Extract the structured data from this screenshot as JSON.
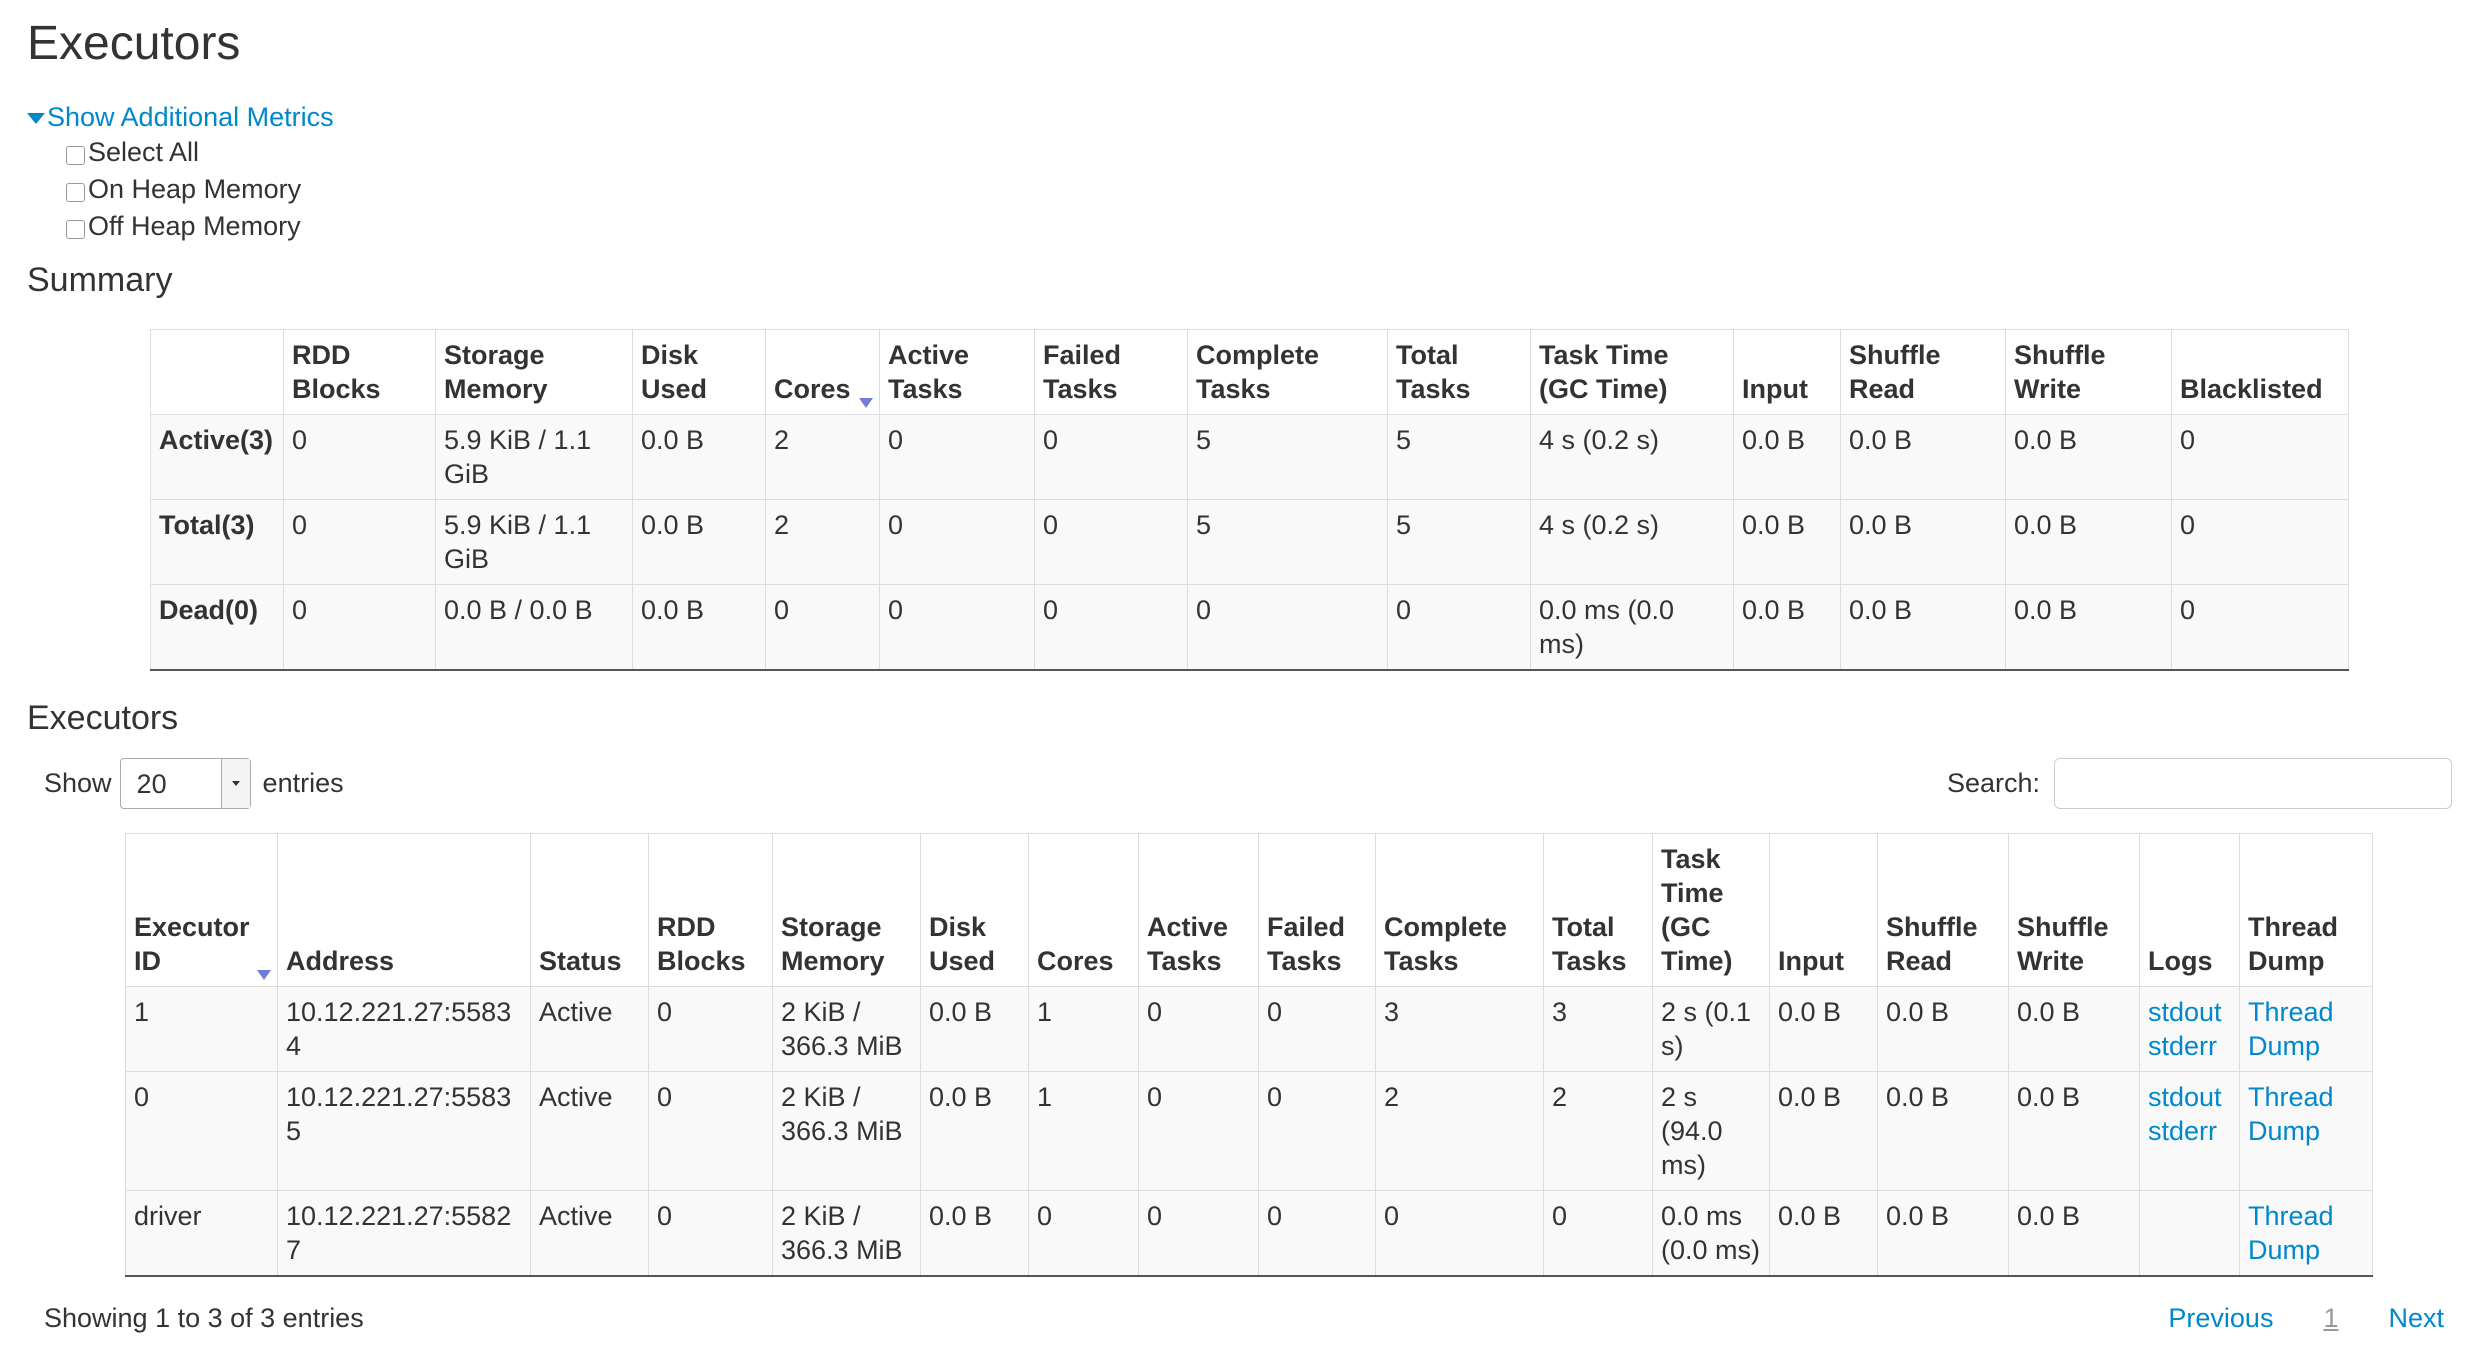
{
  "page_title": "Executors",
  "metrics_toggle": "Show Additional Metrics",
  "metrics_options": [
    "Select All",
    "On Heap Memory",
    "Off Heap Memory"
  ],
  "summary": {
    "heading": "Summary",
    "columns": [
      "",
      "RDD Blocks",
      "Storage Memory",
      "Disk Used",
      "Cores",
      "Active Tasks",
      "Failed Tasks",
      "Complete Tasks",
      "Total Tasks",
      "Task Time (GC Time)",
      "Input",
      "Shuffle Read",
      "Shuffle Write",
      "Blacklisted"
    ],
    "sorted_column": "Cores",
    "rows": [
      [
        "Active(3)",
        "0",
        "5.9 KiB / 1.1 GiB",
        "0.0 B",
        "2",
        "0",
        "0",
        "5",
        "5",
        "4 s (0.2 s)",
        "0.0 B",
        "0.0 B",
        "0.0 B",
        "0"
      ],
      [
        "Total(3)",
        "0",
        "5.9 KiB / 1.1 GiB",
        "0.0 B",
        "2",
        "0",
        "0",
        "5",
        "5",
        "4 s (0.2 s)",
        "0.0 B",
        "0.0 B",
        "0.0 B",
        "0"
      ],
      [
        "Dead(0)",
        "0",
        "0.0 B / 0.0 B",
        "0.0 B",
        "0",
        "0",
        "0",
        "0",
        "0",
        "0.0 ms (0.0 ms)",
        "0.0 B",
        "0.0 B",
        "0.0 B",
        "0"
      ]
    ]
  },
  "executors": {
    "heading": "Executors",
    "show_label": "Show",
    "page_size": "20",
    "entries_label": "entries",
    "search_label": "Search:",
    "search_value": "",
    "columns": [
      "Executor ID",
      "Address",
      "Status",
      "RDD Blocks",
      "Storage Memory",
      "Disk Used",
      "Cores",
      "Active Tasks",
      "Failed Tasks",
      "Complete Tasks",
      "Total Tasks",
      "Task Time (GC Time)",
      "Input",
      "Shuffle Read",
      "Shuffle Write",
      "Logs",
      "Thread Dump"
    ],
    "sorted_column": "Executor ID",
    "rows": [
      {
        "cells": [
          "1",
          "10.12.221.27:55834",
          "Active",
          "0",
          "2 KiB / 366.3 MiB",
          "0.0 B",
          "1",
          "0",
          "0",
          "3",
          "3",
          "2 s (0.1 s)",
          "0.0 B",
          "0.0 B",
          "0.0 B"
        ],
        "logs": [
          "stdout",
          "stderr"
        ],
        "thread_dump": "Thread Dump"
      },
      {
        "cells": [
          "0",
          "10.12.221.27:55835",
          "Active",
          "0",
          "2 KiB / 366.3 MiB",
          "0.0 B",
          "1",
          "0",
          "0",
          "2",
          "2",
          "2 s (94.0 ms)",
          "0.0 B",
          "0.0 B",
          "0.0 B"
        ],
        "logs": [
          "stdout",
          "stderr"
        ],
        "thread_dump": "Thread Dump"
      },
      {
        "cells": [
          "driver",
          "10.12.221.27:55827",
          "Active",
          "0",
          "2 KiB / 366.3 MiB",
          "0.0 B",
          "0",
          "0",
          "0",
          "0",
          "0",
          "0.0 ms (0.0 ms)",
          "0.0 B",
          "0.0 B",
          "0.0 B"
        ],
        "logs": [],
        "thread_dump": "Thread Dump"
      }
    ],
    "info": "Showing 1 to 3 of 3 entries",
    "pagination": {
      "previous": "Previous",
      "current": "1",
      "next": "Next"
    }
  },
  "colors": {
    "link": "#0088cc",
    "sort_arrow": "#6f7fd8",
    "row_bg": "#f9f9f9",
    "border": "#dddddd"
  }
}
